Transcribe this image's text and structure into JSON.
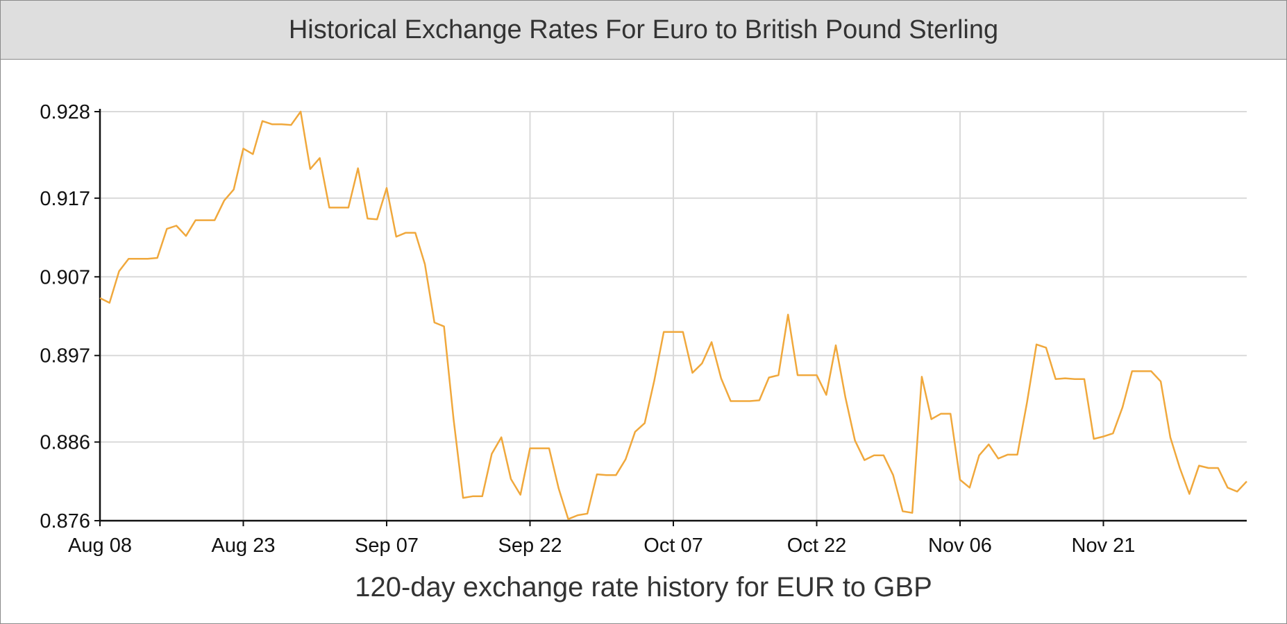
{
  "header": {
    "title": "Historical Exchange Rates For Euro to British Pound Sterling"
  },
  "caption": "120-day exchange rate history for EUR to GBP",
  "colors": {
    "line": "#f0a83c",
    "grid": "#d9d9d9",
    "axis": "#111111",
    "header_bg": "#dedede"
  },
  "chart_data": {
    "type": "line",
    "title": "Historical Exchange Rates For Euro to British Pound Sterling",
    "xlabel": "120-day exchange rate history for EUR to GBP",
    "ylabel": "",
    "ylim": [
      0.876,
      0.928
    ],
    "xlim": [
      "Aug 08",
      "Dec 05"
    ],
    "grid": true,
    "y_ticks": [
      "0.876",
      "0.886",
      "0.897",
      "0.907",
      "0.917",
      "0.928"
    ],
    "y_tick_values": [
      0.876,
      0.886,
      0.897,
      0.907,
      0.917,
      0.928
    ],
    "x_ticks": [
      "Aug 08",
      "Aug 23",
      "Sep 07",
      "Sep 22",
      "Oct 07",
      "Oct 22",
      "Nov 06",
      "Nov 21"
    ],
    "series": [
      {
        "color": "#f0a83c",
        "values": [
          0.9043,
          0.9037,
          0.9077,
          0.9093,
          0.9093,
          0.9093,
          0.9094,
          0.9131,
          0.9135,
          0.9122,
          0.9142,
          0.9142,
          0.9142,
          0.9167,
          0.9181,
          0.9233,
          0.9226,
          0.9268,
          0.9264,
          0.9264,
          0.9263,
          0.928,
          0.9207,
          0.9221,
          0.9158,
          0.9158,
          0.9158,
          0.9208,
          0.9144,
          0.9143,
          0.9183,
          0.9121,
          0.9126,
          0.9126,
          0.9086,
          0.9012,
          0.9007,
          0.8889,
          0.8789,
          0.8791,
          0.8791,
          0.8845,
          0.8866,
          0.8813,
          0.8793,
          0.8852,
          0.8852,
          0.8852,
          0.8801,
          0.8762,
          0.8767,
          0.8769,
          0.8819,
          0.8818,
          0.8818,
          0.8838,
          0.8873,
          0.8884,
          0.8938,
          0.9,
          0.9,
          0.9,
          0.8948,
          0.896,
          0.8987,
          0.8941,
          0.8912,
          0.8912,
          0.8912,
          0.8913,
          0.8942,
          0.8945,
          0.9022,
          0.8945,
          0.8945,
          0.8945,
          0.892,
          0.8983,
          0.8917,
          0.8862,
          0.8837,
          0.8843,
          0.8843,
          0.8818,
          0.8772,
          0.877,
          0.8943,
          0.8889,
          0.8896,
          0.8896,
          0.8812,
          0.8802,
          0.8843,
          0.8857,
          0.8839,
          0.8844,
          0.8844,
          0.891,
          0.8984,
          0.898,
          0.894,
          0.8941,
          0.894,
          0.894,
          0.8864,
          0.8867,
          0.8871,
          0.8904,
          0.895,
          0.895,
          0.895,
          0.8937,
          0.8866,
          0.8827,
          0.8794,
          0.883,
          0.8827,
          0.8827,
          0.8802,
          0.8797,
          0.881
        ]
      }
    ]
  }
}
